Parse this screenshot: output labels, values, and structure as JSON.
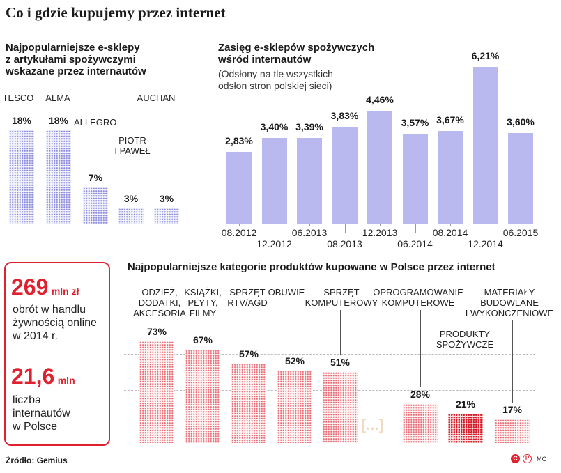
{
  "title": "Co i gdzie kupujemy przez internet",
  "shops": {
    "subtitle_lines": [
      "Najpopularniejsze e-sklepy",
      "z artykułami spożywczymi",
      "wskazane przez internautów"
    ]
  },
  "reach": {
    "subtitle_lines": [
      "Zasięg e-sklepów spożywczych",
      "wśród internautów"
    ],
    "note_lines": [
      "(Odsłony na tle wszystkich",
      "odsłon stron polskiej sieci)"
    ]
  },
  "categories_title": "Najpopularniejsze kategorie produktów kupowane w Polsce przez internet",
  "stats": {
    "turnover_value": "269",
    "turnover_unit": "mln zł",
    "turnover_lines": [
      "obrót w handlu",
      "żywnością online",
      "w 2014 r."
    ],
    "users_value": "21,6",
    "users_unit": "mln",
    "users_lines": [
      "liczba",
      "internautów",
      "w Polsce"
    ]
  },
  "ellipsis": "[...]",
  "source": "Źródło: Gemius",
  "logo_text": "MC",
  "colors": {
    "blue": "#b9b9f0",
    "red": "#e0202e",
    "red_light": "#f4a9ae"
  },
  "chart_data": [
    {
      "type": "bar",
      "categories": [
        "TESCO",
        "ALMA",
        "ALLEGRO",
        "PIOTR I PAWEŁ",
        "AUCHAN"
      ],
      "category_lines": [
        [
          "TESCO"
        ],
        [
          "ALMA"
        ],
        [
          "ALLEGRO"
        ],
        [
          "PIOTR",
          "I PAWEŁ"
        ],
        [
          "AUCHAN"
        ]
      ],
      "values": [
        18,
        18,
        7,
        3,
        3
      ],
      "value_labels": [
        "18%",
        "18%",
        "7%",
        "3%",
        "3%"
      ],
      "ylim": [
        0,
        18
      ]
    },
    {
      "type": "bar",
      "categories": [
        "08.2012",
        "12.2012",
        "06.2013",
        "08.2013",
        "12.2013",
        "06.2014",
        "08.2014",
        "12.2014",
        "06.2015"
      ],
      "values": [
        2.83,
        3.4,
        3.39,
        3.83,
        4.46,
        3.57,
        3.67,
        6.21,
        3.6
      ],
      "value_labels": [
        "2,83%",
        "3,40%",
        "3,39%",
        "3,83%",
        "4,46%",
        "3,57%",
        "3,67%",
        "6,21%",
        "3,60%"
      ],
      "ylim": [
        0,
        6.21
      ]
    },
    {
      "type": "bar",
      "categories": [
        "ODZIEŻ, DODATKI, AKCESORIA",
        "KSIĄŻKI, PŁYTY, FILMY",
        "SPRZĘT RTV/AGD",
        "OBUWIE",
        "SPRZĘT KOMPUTEROWY",
        "OPROGRAMOWANIE KOMPUTEROWE",
        "PRODUKTY SPOŻYWCZE",
        "MATERIAŁY BUDOWLANE I WYKOŃCZENIOWE"
      ],
      "category_lines": [
        [
          "ODZIEŻ,",
          "DODATKI,",
          "AKCESORIA"
        ],
        [
          "KSIĄŻKI,",
          "PŁYTY,",
          "FILMY"
        ],
        [
          "SPRZĘT",
          "RTV/AGD"
        ],
        [
          "OBUWIE"
        ],
        [
          "SPRZĘT",
          "KOMPUTEROWY"
        ],
        [
          "OPROGRAMOWANIE",
          "KOMPUTEROWE"
        ],
        [
          "PRODUKTY",
          "SPOŻYWCZE"
        ],
        [
          "MATERIAŁY",
          "BUDOWLANE",
          "I WYKOŃCZENIOWE"
        ]
      ],
      "values": [
        73,
        67,
        57,
        52,
        51,
        28,
        21,
        17
      ],
      "value_labels": [
        "73%",
        "67%",
        "57%",
        "52%",
        "51%",
        "28%",
        "21%",
        "17%"
      ],
      "highlight": "PRODUKTY SPOŻYWCZE",
      "ylim": [
        0,
        73
      ]
    }
  ]
}
